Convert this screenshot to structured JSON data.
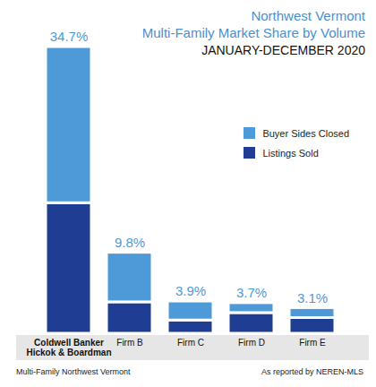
{
  "chart_data": {
    "type": "bar",
    "title": "Northwest Vermont\nMulti-Family Market Share by Volume",
    "subtitle": "JANUARY-DECEMBER 2020",
    "categories": [
      "Coldwell Banker\nHickok & Boardman",
      "Firm B",
      "Firm C",
      "Firm D",
      "Firm E"
    ],
    "series": [
      {
        "name": "Buyer Sides Closed",
        "color": "#4e9ad8",
        "values": [
          18.9,
          6.0,
          2.3,
          1.2,
          1.2
        ]
      },
      {
        "name": "Listings Sold",
        "color": "#1f3d92",
        "values": [
          15.8,
          3.8,
          1.6,
          2.5,
          1.9
        ]
      }
    ],
    "totals": [
      34.7,
      9.8,
      3.9,
      3.7,
      3.1
    ],
    "total_labels": [
      "34.7%",
      "9.8%",
      "3.9%",
      "3.7%",
      "3.1%"
    ],
    "stacked": true,
    "legend": "right",
    "tick_labels": "x",
    "annotations": [
      "Multi-Family Northwest Vermont",
      "As reported by NEREN-MLS"
    ]
  }
}
